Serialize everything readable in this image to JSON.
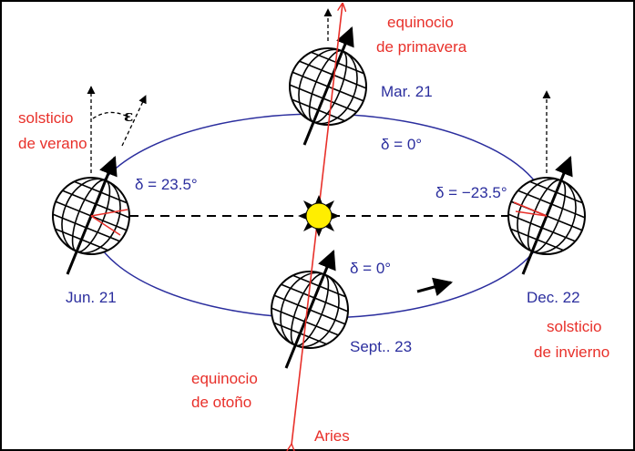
{
  "labels": {
    "summer_solstice": [
      "solsticio",
      "de verano"
    ],
    "epsilon": "ε",
    "jun_delta": "δ = 23.5°",
    "jun_date": "Jun. 21",
    "spring_equinox": [
      "equinocio",
      "de primavera"
    ],
    "mar_date": "Mar. 21",
    "mar_delta": "δ = 0°",
    "dec_delta": "δ = −23.5°",
    "dec_date": "Dec. 22",
    "winter_solstice": [
      "solsticio",
      "de invierno"
    ],
    "sep_delta": "δ = 0°",
    "sep_date": "Sept.. 23",
    "autumn_equinox": [
      "equinocio",
      "de otoño"
    ],
    "aries": "Aries"
  }
}
